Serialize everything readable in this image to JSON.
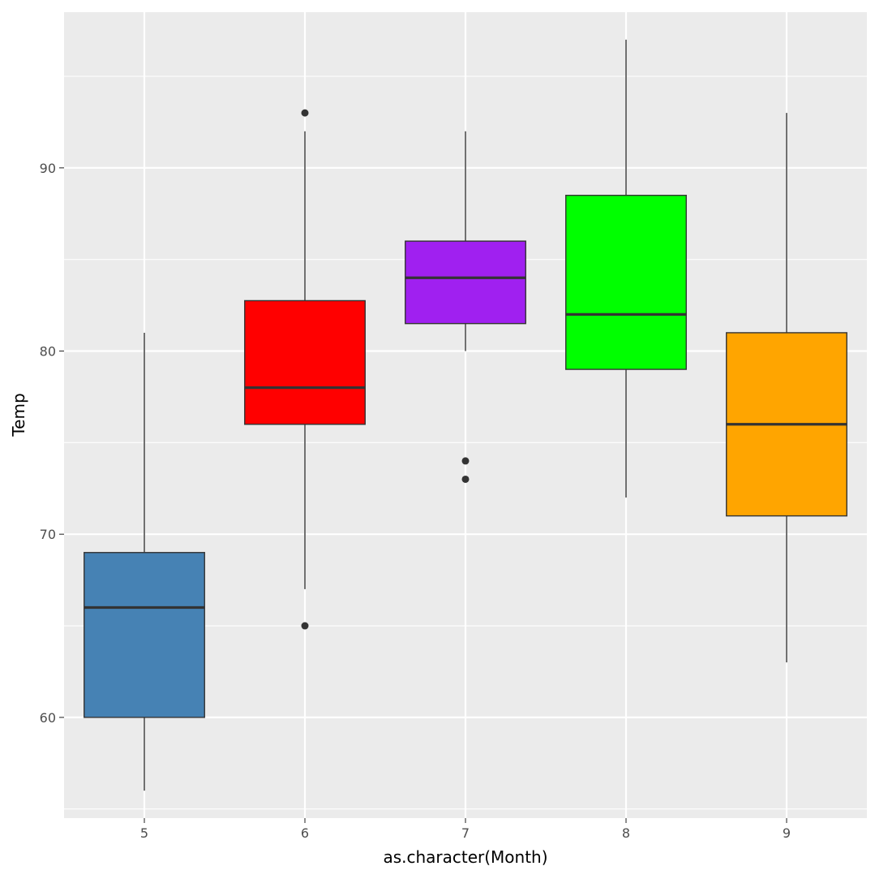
{
  "chart_data": {
    "type": "box",
    "xlabel": "as.character(Month)",
    "ylabel": "Temp",
    "ylim": [
      54.5,
      98.5
    ],
    "y_ticks": [
      60,
      70,
      80,
      90
    ],
    "grid": true,
    "panel_background": "#ebebeb",
    "categories": [
      "5",
      "6",
      "7",
      "8",
      "9"
    ],
    "boxes": [
      {
        "category": "5",
        "fill": "#4682b4",
        "whisker_low": 56,
        "q1": 60,
        "median": 66,
        "q3": 69,
        "whisker_high": 81,
        "outliers": []
      },
      {
        "category": "6",
        "fill": "#ff0000",
        "whisker_low": 67,
        "q1": 76,
        "median": 78,
        "q3": 82.75,
        "whisker_high": 92,
        "outliers": [
          93,
          65
        ]
      },
      {
        "category": "7",
        "fill": "#a020f0",
        "whisker_low": 80,
        "q1": 81.5,
        "median": 84,
        "q3": 86,
        "whisker_high": 92,
        "outliers": [
          74,
          73
        ]
      },
      {
        "category": "8",
        "fill": "#00ff00",
        "whisker_low": 72,
        "q1": 79,
        "median": 82,
        "q3": 88.5,
        "whisker_high": 97,
        "outliers": []
      },
      {
        "category": "9",
        "fill": "#ffa500",
        "whisker_low": 63,
        "q1": 71,
        "median": 76,
        "q3": 81,
        "whisker_high": 93,
        "outliers": []
      }
    ]
  }
}
